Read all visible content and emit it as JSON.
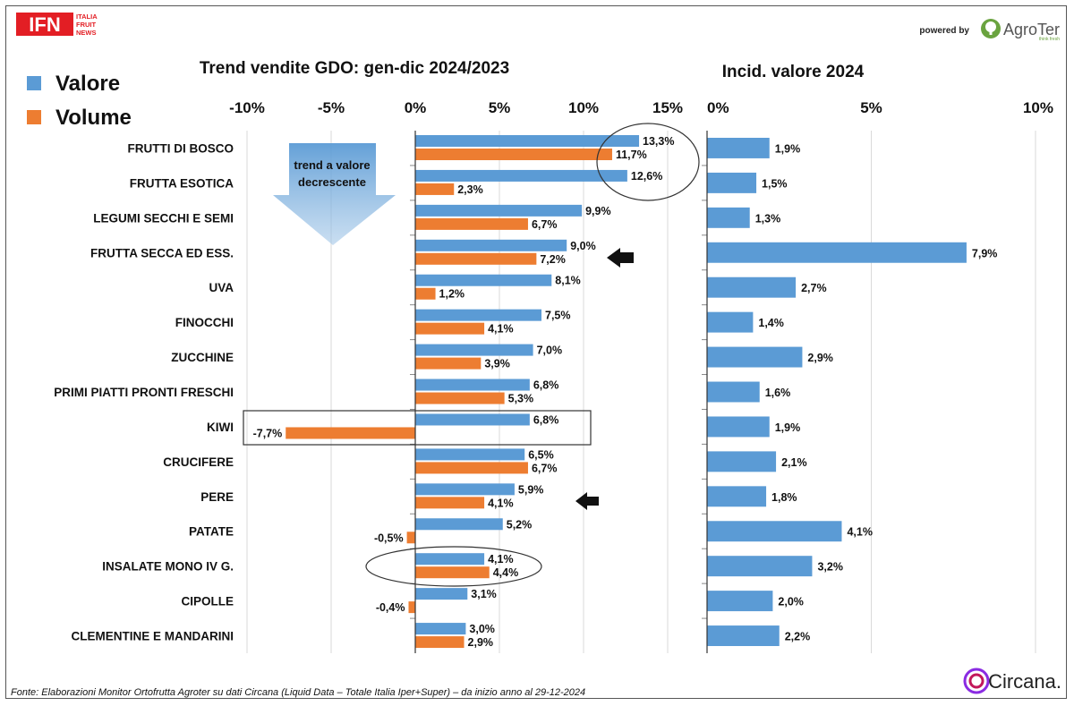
{
  "branding": {
    "ifn_logo": "IFN",
    "ifn_sub": [
      "ITALIA",
      "FRUIT",
      "NEWS"
    ],
    "powered_by": "powered by",
    "agroter": "AgroTer",
    "agroter_tagline": "think fresh",
    "circana": "Circana."
  },
  "legend": [
    {
      "label": "Valore",
      "color": "#5B9BD5"
    },
    {
      "label": "Volume",
      "color": "#ED7D31"
    }
  ],
  "annotation": {
    "arrow_line1": "trend a valore",
    "arrow_line2": "decrescente"
  },
  "footnote": "Fonte: Elaborazioni Monitor Ortofrutta Agroter su dati Circana (Liquid Data – Totale Italia Iper+Super) – da inizio anno al 29-12-2024",
  "chart_data": [
    {
      "type": "bar",
      "orientation": "horizontal",
      "title": "Trend vendite GDO: gen-dic 2024/2023",
      "xlim": [
        -10,
        15
      ],
      "xticks": [
        "-10%",
        "-5%",
        "0%",
        "5%",
        "10%",
        "15%"
      ],
      "xtick_values": [
        -10,
        -5,
        0,
        5,
        10,
        15
      ],
      "grid": "vertical",
      "legend_position": "top-left",
      "categories": [
        "FRUTTI DI BOSCO",
        "FRUTTA ESOTICA",
        "LEGUMI SECCHI E SEMI",
        "FRUTTA SECCA ED ESS.",
        "UVA",
        "FINOCCHI",
        "ZUCCHINE",
        "PRIMI PIATTI PRONTI FRESCHI",
        "KIWI",
        "CRUCIFERE",
        "PERE",
        "PATATE",
        "INSALATE MONO IV G.",
        "CIPOLLE",
        "CLEMENTINE E MANDARINI"
      ],
      "series": [
        {
          "name": "Valore",
          "color": "#5B9BD5",
          "values": [
            13.3,
            12.6,
            9.9,
            9.0,
            8.1,
            7.5,
            7.0,
            6.8,
            6.8,
            6.5,
            5.9,
            5.2,
            4.1,
            3.1,
            3.0
          ],
          "labels": [
            "13,3%",
            "12,6%",
            "9,9%",
            "9,0%",
            "8,1%",
            "7,5%",
            "7,0%",
            "6,8%",
            "6,8%",
            "6,5%",
            "5,9%",
            "5,2%",
            "4,1%",
            "3,1%",
            "3,0%"
          ]
        },
        {
          "name": "Volume",
          "color": "#ED7D31",
          "values": [
            11.7,
            2.3,
            6.7,
            7.2,
            1.2,
            4.1,
            3.9,
            5.3,
            -7.7,
            6.7,
            4.1,
            -0.5,
            4.4,
            -0.4,
            2.9
          ],
          "labels": [
            "11,7%",
            "2,3%",
            "6,7%",
            "7,2%",
            "1,2%",
            "4,1%",
            "3,9%",
            "5,3%",
            "-7,7%",
            "6,7%",
            "4,1%",
            "-0,5%",
            "4,4%",
            "-0,4%",
            "2,9%"
          ]
        }
      ]
    },
    {
      "type": "bar",
      "orientation": "horizontal",
      "title": "Incid. valore 2024",
      "xlim": [
        0,
        10
      ],
      "xticks": [
        "0%",
        "5%",
        "10%"
      ],
      "xtick_values": [
        0,
        5,
        10
      ],
      "grid": "vertical",
      "categories": [
        "FRUTTI DI BOSCO",
        "FRUTTA ESOTICA",
        "LEGUMI SECCHI E SEMI",
        "FRUTTA SECCA ED ESS.",
        "UVA",
        "FINOCCHI",
        "ZUCCHINE",
        "PRIMI PIATTI PRONTI FRESCHI",
        "KIWI",
        "CRUCIFERE",
        "PERE",
        "PATATE",
        "INSALATE MONO IV G.",
        "CIPOLLE",
        "CLEMENTINE E MANDARINI"
      ],
      "series": [
        {
          "color": "#5B9BD5",
          "values": [
            1.9,
            1.5,
            1.3,
            7.9,
            2.7,
            1.4,
            2.9,
            1.6,
            1.9,
            2.1,
            1.8,
            4.1,
            3.2,
            2.0,
            2.2
          ],
          "labels": [
            "1,9%",
            "1,5%",
            "1,3%",
            "7,9%",
            "2,7%",
            "1,4%",
            "2,9%",
            "1,6%",
            "1,9%",
            "2,1%",
            "1,8%",
            "4,1%",
            "3,2%",
            "2,0%",
            "2,2%"
          ]
        }
      ]
    }
  ]
}
